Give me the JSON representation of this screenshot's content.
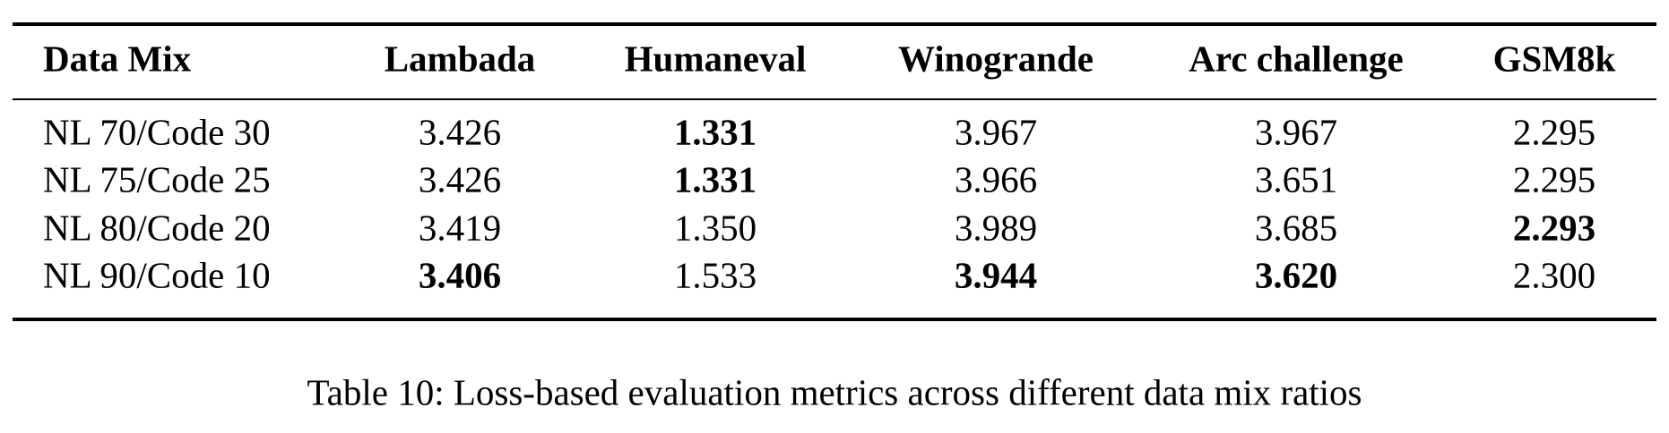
{
  "table": {
    "columns": [
      "Data Mix",
      "Lambada",
      "Humaneval",
      "Winogrande",
      "Arc challenge",
      "GSM8k"
    ],
    "rows": [
      [
        {
          "text": "NL 70/Code 30",
          "bold": false
        },
        {
          "text": "3.426",
          "bold": false
        },
        {
          "text": "1.331",
          "bold": true
        },
        {
          "text": "3.967",
          "bold": false
        },
        {
          "text": "3.967",
          "bold": false
        },
        {
          "text": "2.295",
          "bold": false
        }
      ],
      [
        {
          "text": "NL 75/Code 25",
          "bold": false
        },
        {
          "text": "3.426",
          "bold": false
        },
        {
          "text": "1.331",
          "bold": true
        },
        {
          "text": "3.966",
          "bold": false
        },
        {
          "text": "3.651",
          "bold": false
        },
        {
          "text": "2.295",
          "bold": false
        }
      ],
      [
        {
          "text": "NL 80/Code 20",
          "bold": false
        },
        {
          "text": "3.419",
          "bold": false
        },
        {
          "text": "1.350",
          "bold": false
        },
        {
          "text": "3.989",
          "bold": false
        },
        {
          "text": "3.685",
          "bold": false
        },
        {
          "text": "2.293",
          "bold": true
        }
      ],
      [
        {
          "text": "NL 90/Code 10",
          "bold": false
        },
        {
          "text": "3.406",
          "bold": true
        },
        {
          "text": "1.533",
          "bold": false
        },
        {
          "text": "3.944",
          "bold": true
        },
        {
          "text": "3.620",
          "bold": true
        },
        {
          "text": "2.300",
          "bold": false
        }
      ]
    ],
    "caption": "Table 10: Loss-based evaluation metrics across different data mix ratios"
  }
}
